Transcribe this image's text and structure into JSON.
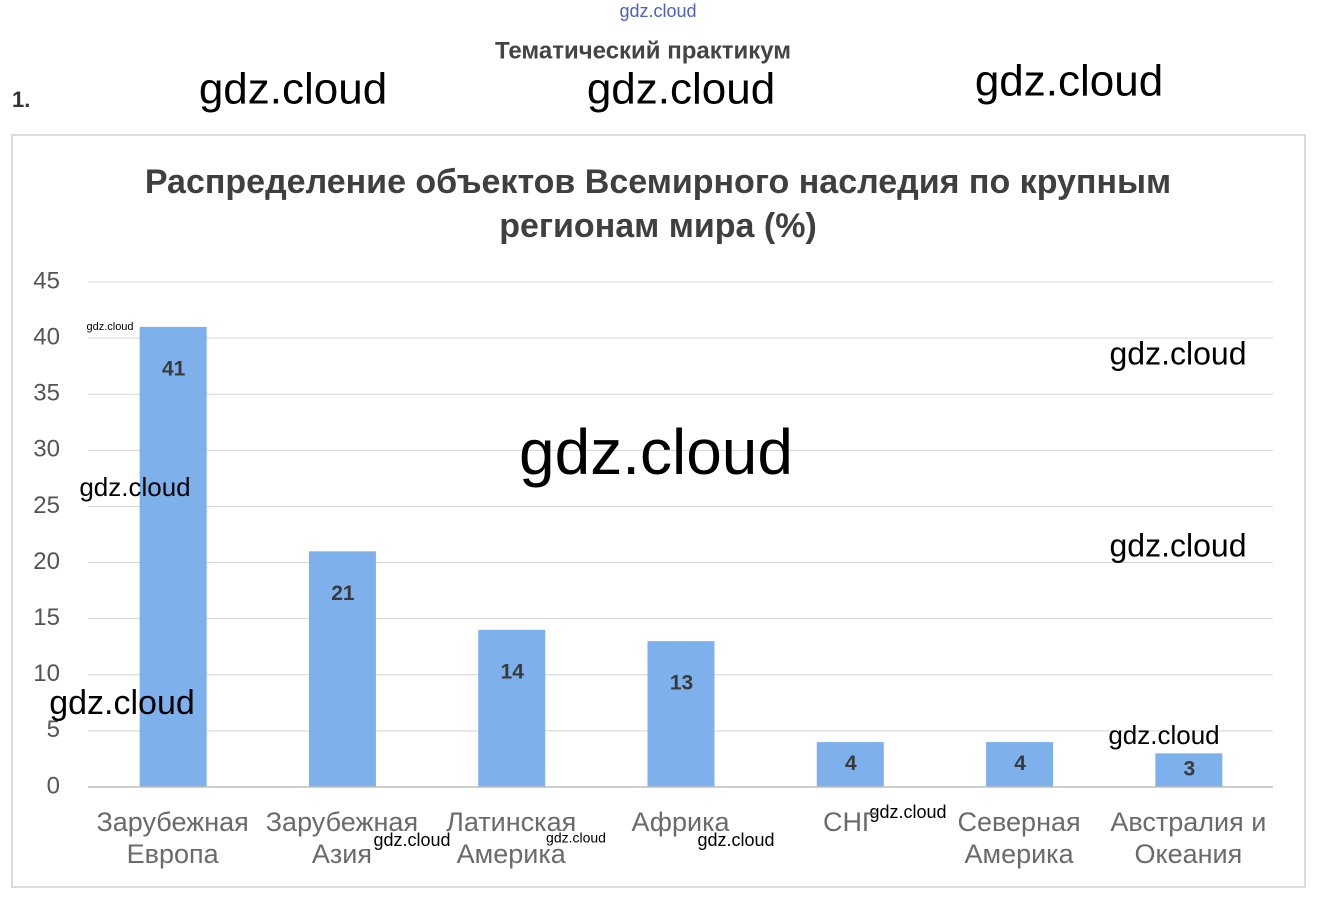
{
  "header": {
    "section": "Тематический практикум",
    "task_number": "1."
  },
  "watermarks": [
    "gdz.cloud",
    "gdz.cloud",
    "gdz.cloud",
    "gdz.cloud",
    "gdz.cloud",
    "gdz.cloud",
    "gdz.cloud",
    "gdz.cloud",
    "gdz.cloud",
    "gdz.cloud",
    "gdz.cloud",
    "gdz.cloud",
    "gdz.cloud",
    "gdz.cloud",
    "gdz.cloud"
  ],
  "chart_data": {
    "type": "bar",
    "title": "Распределение объектов Всемирного наследия по крупным регионам мира (%)",
    "categories": [
      "Зарубежная Европа",
      "Зарубежная Азия",
      "Латинская Америка",
      "Африка",
      "СНГ",
      "Северная Америка",
      "Австралия и Океания"
    ],
    "values": [
      41,
      21,
      14,
      13,
      4,
      4,
      3
    ],
    "color": "#7eb1ec",
    "ylim": [
      0,
      45
    ],
    "yticks": [
      0,
      5,
      10,
      15,
      20,
      25,
      30,
      35,
      40,
      45
    ],
    "grid": true
  }
}
